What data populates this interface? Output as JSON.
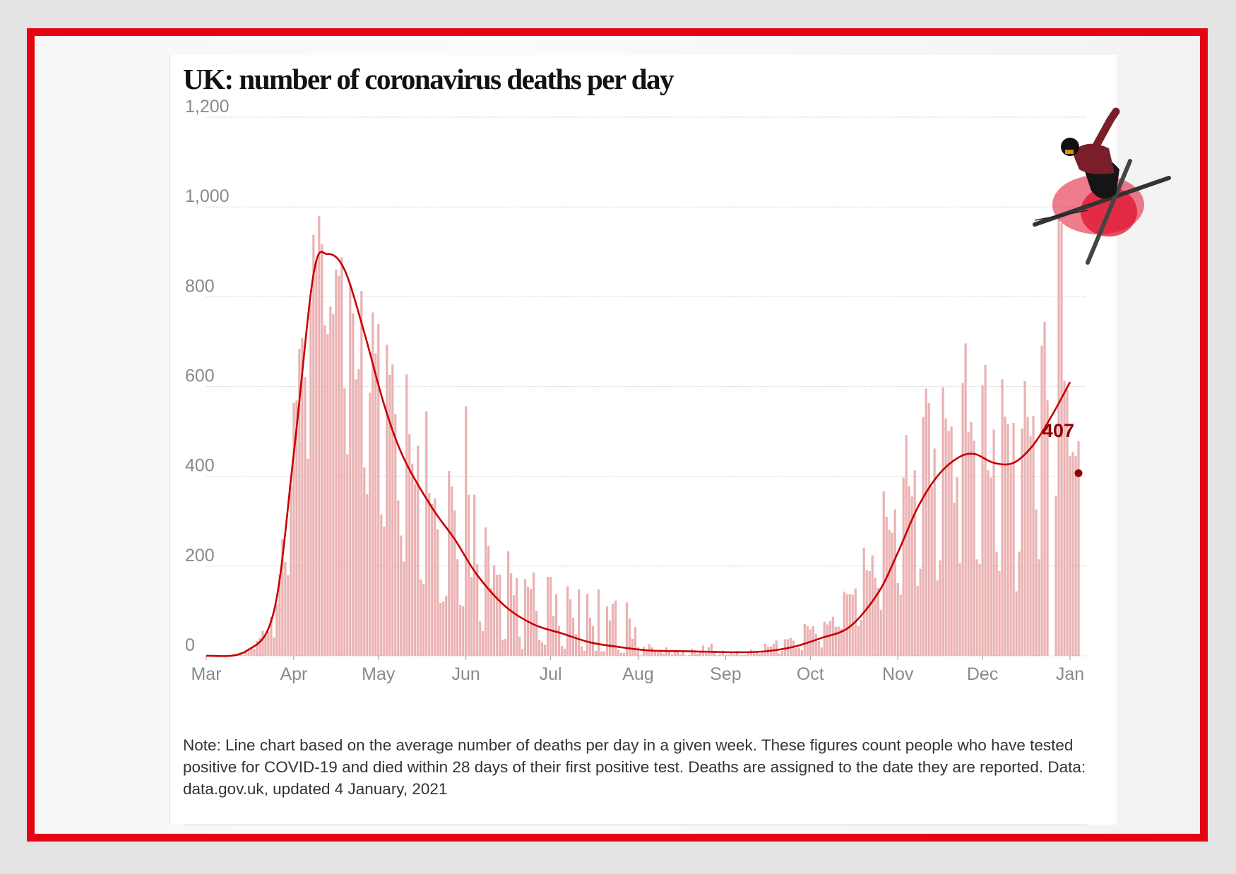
{
  "chart_data": {
    "type": "bar+line",
    "title": "UK: number of coronavirus deaths per day",
    "note": "Note: Line chart based on the average number of deaths per day in a given week. These figures count people who have tested positive for COVID-19 and died within 28 days of their first positive test. Deaths are assigned to the date they are reported. Data: data.gov.uk, updated 4 January, 2021",
    "xlim": [
      "2020-03-01",
      "2021-01-04"
    ],
    "ylim": [
      0,
      1200
    ],
    "grid": true,
    "y_ticks": [
      0,
      200,
      400,
      600,
      800,
      1000,
      1200
    ],
    "y_tick_labels": [
      "0",
      "200",
      "400",
      "600",
      "800",
      "1,000",
      "1,200"
    ],
    "x_ticks": [
      {
        "date": "2020-03-01",
        "label": "Mar"
      },
      {
        "date": "2020-04-01",
        "label": "Apr"
      },
      {
        "date": "2020-05-01",
        "label": "May"
      },
      {
        "date": "2020-06-01",
        "label": "Jun"
      },
      {
        "date": "2020-07-01",
        "label": "Jul"
      },
      {
        "date": "2020-08-01",
        "label": "Aug"
      },
      {
        "date": "2020-09-01",
        "label": "Sep"
      },
      {
        "date": "2020-10-01",
        "label": "Oct"
      },
      {
        "date": "2020-11-01",
        "label": "Nov"
      },
      {
        "date": "2020-12-01",
        "label": "Dec"
      },
      {
        "date": "2021-01-01",
        "label": "Jan"
      }
    ],
    "daily_bars": [
      {
        "month": "2020-03",
        "values": [
          0,
          0,
          0,
          0,
          1,
          0,
          1,
          1,
          2,
          1,
          2,
          1,
          8,
          1,
          10,
          14,
          20,
          16,
          33,
          40,
          56,
          48,
          54,
          87,
          41,
          115,
          181,
          260,
          209,
          180,
          381
        ]
      },
      {
        "month": "2020-04",
        "values": [
          563,
          569,
          684,
          708,
          621,
          439,
          786,
          938,
          881,
          980,
          917,
          737,
          717,
          778,
          761,
          861,
          847,
          888,
          596,
          449,
          828,
          763,
          616,
          639,
          813,
          420,
          360,
          586,
          765,
          674
        ]
      },
      {
        "month": "2020-05",
        "values": [
          739,
          315,
          288,
          693,
          626,
          649,
          539,
          346,
          268,
          210,
          627,
          494,
          428,
          384,
          468,
          170,
          160,
          545,
          363,
          338,
          351,
          282,
          118,
          121,
          134,
          412,
          377,
          324,
          215,
          113,
          111
        ]
      },
      {
        "month": "2020-06",
        "values": [
          556,
          359,
          176,
          359,
          204,
          77,
          55,
          286,
          245,
          151,
          202,
          181,
          181,
          36,
          38,
          233,
          184,
          135,
          173,
          43,
          15,
          171,
          154,
          149,
          186,
          100,
          36,
          30,
          25,
          176
        ]
      },
      {
        "month": "2020-07",
        "values": [
          176,
          89,
          137,
          67,
          22,
          16,
          155,
          126,
          85,
          48,
          148,
          21,
          11,
          138,
          85,
          66,
          11,
          148,
          10,
          10,
          110,
          79,
          116,
          123,
          14,
          7,
          7,
          119,
          83,
          38,
          64
        ]
      },
      {
        "month": "2020-08",
        "values": [
          19,
          1,
          20,
          10,
          26,
          19,
          13,
          8,
          14,
          5,
          19,
          8,
          3,
          13,
          10,
          3,
          12,
          1,
          2,
          16,
          13,
          5,
          8,
          23,
          10,
          19,
          27,
          8,
          1,
          4,
          12
        ]
      },
      {
        "month": "2020-09",
        "values": [
          2,
          3,
          6,
          3,
          11,
          2,
          2,
          3,
          8,
          14,
          6,
          8,
          5,
          9,
          27,
          20,
          21,
          27,
          34,
          5,
          11,
          37,
          37,
          40,
          34,
          17,
          18,
          13,
          71,
          66
        ]
      },
      {
        "month": "2020-10",
        "values": [
          59,
          66,
          49,
          33,
          19,
          76,
          70,
          77,
          87,
          65,
          65,
          60,
          143,
          137,
          138,
          136,
          150,
          67,
          80,
          241,
          191,
          189,
          224,
          174,
          151,
          102,
          367,
          310,
          280,
          274,
          326
        ]
      },
      {
        "month": "2020-11",
        "values": [
          162,
          136,
          397,
          492,
          378,
          355,
          413,
          156,
          194,
          532,
          595,
          563,
          376,
          462,
          168,
          213,
          598,
          529,
          501,
          511,
          341,
          398,
          206,
          608,
          696,
          498,
          521,
          479,
          215,
          205
        ]
      },
      {
        "month": "2020-12",
        "values": [
          603,
          648,
          414,
          397,
          504,
          231,
          189,
          616,
          533,
          516,
          424,
          519,
          144,
          232,
          506,
          612,
          532,
          489,
          534,
          326,
          215,
          691,
          744,
          570,
          0,
          0,
          357,
          981,
          964,
          613,
          599
        ]
      },
      {
        "month": "2021-01",
        "values": [
          445,
          454,
          445,
          478
        ]
      }
    ],
    "weekly_average_line": [
      {
        "date": "2020-03-01",
        "value": 0
      },
      {
        "date": "2020-03-15",
        "value": 10
      },
      {
        "date": "2020-03-25",
        "value": 100
      },
      {
        "date": "2020-04-01",
        "value": 450
      },
      {
        "date": "2020-04-08",
        "value": 850
      },
      {
        "date": "2020-04-13",
        "value": 895
      },
      {
        "date": "2020-04-19",
        "value": 860
      },
      {
        "date": "2020-04-26",
        "value": 720
      },
      {
        "date": "2020-05-03",
        "value": 560
      },
      {
        "date": "2020-05-10",
        "value": 440
      },
      {
        "date": "2020-05-20",
        "value": 330
      },
      {
        "date": "2020-05-28",
        "value": 260
      },
      {
        "date": "2020-06-05",
        "value": 180
      },
      {
        "date": "2020-06-15",
        "value": 110
      },
      {
        "date": "2020-06-25",
        "value": 70
      },
      {
        "date": "2020-07-05",
        "value": 50
      },
      {
        "date": "2020-07-15",
        "value": 30
      },
      {
        "date": "2020-07-25",
        "value": 20
      },
      {
        "date": "2020-08-05",
        "value": 12
      },
      {
        "date": "2020-08-20",
        "value": 10
      },
      {
        "date": "2020-09-05",
        "value": 8
      },
      {
        "date": "2020-09-15",
        "value": 10
      },
      {
        "date": "2020-09-25",
        "value": 20
      },
      {
        "date": "2020-10-05",
        "value": 40
      },
      {
        "date": "2020-10-15",
        "value": 65
      },
      {
        "date": "2020-10-25",
        "value": 140
      },
      {
        "date": "2020-11-01",
        "value": 230
      },
      {
        "date": "2020-11-08",
        "value": 330
      },
      {
        "date": "2020-11-15",
        "value": 400
      },
      {
        "date": "2020-11-22",
        "value": 440
      },
      {
        "date": "2020-11-28",
        "value": 450
      },
      {
        "date": "2020-12-05",
        "value": 430
      },
      {
        "date": "2020-12-12",
        "value": 430
      },
      {
        "date": "2020-12-19",
        "value": 470
      },
      {
        "date": "2020-12-26",
        "value": 540
      },
      {
        "date": "2021-01-01",
        "value": 610
      }
    ],
    "latest_point": {
      "date": "2021-01-04",
      "value": 407,
      "label": "407"
    },
    "colors": {
      "bars": "#e9a9aa",
      "line": "#c70000",
      "latest": "#8b0000",
      "frame": "#e30613"
    }
  }
}
